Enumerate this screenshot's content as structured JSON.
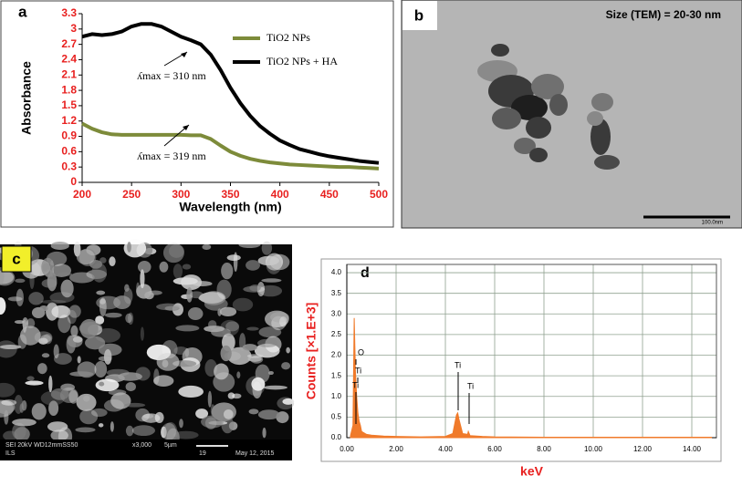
{
  "chart_data": [
    {
      "type": "line",
      "panel_label": "a",
      "xlabel": "Wavelength (nm)",
      "ylabel": "Absorbance",
      "x": [
        200,
        210,
        220,
        230,
        240,
        250,
        260,
        270,
        280,
        290,
        300,
        310,
        320,
        330,
        340,
        350,
        360,
        370,
        380,
        390,
        400,
        410,
        420,
        430,
        440,
        450,
        460,
        470,
        480,
        490,
        500
      ],
      "series": [
        {
          "name": "TiO2 NPs",
          "color": "#7d8b3a",
          "values": [
            1.15,
            1.05,
            0.98,
            0.94,
            0.93,
            0.93,
            0.93,
            0.93,
            0.93,
            0.93,
            0.93,
            0.92,
            0.92,
            0.85,
            0.72,
            0.6,
            0.52,
            0.46,
            0.42,
            0.39,
            0.37,
            0.35,
            0.34,
            0.33,
            0.32,
            0.31,
            0.3,
            0.3,
            0.29,
            0.28,
            0.27
          ]
        },
        {
          "name": "TiO2 NPs + HA",
          "color": "#000000",
          "values": [
            2.85,
            2.9,
            2.88,
            2.9,
            2.95,
            3.05,
            3.1,
            3.1,
            3.05,
            2.95,
            2.85,
            2.78,
            2.7,
            2.5,
            2.2,
            1.85,
            1.55,
            1.3,
            1.1,
            0.95,
            0.82,
            0.73,
            0.65,
            0.6,
            0.55,
            0.51,
            0.48,
            0.45,
            0.42,
            0.4,
            0.38
          ]
        }
      ],
      "xlim": [
        200,
        500
      ],
      "xticks": [
        200,
        250,
        300,
        350,
        400,
        450,
        500
      ],
      "ylim": [
        0,
        3.3
      ],
      "yticks": [
        0,
        0.3,
        0.6,
        0.9,
        1.2,
        1.5,
        1.8,
        2.1,
        2.4,
        2.7,
        3,
        3.3
      ],
      "tick_label_color": "#e8201f",
      "annotations": [
        "ʎmax = 310 nm",
        "ʎmax = 319 nm"
      ]
    },
    {
      "type": "area",
      "panel_label": "d",
      "xlabel": "keV",
      "ylabel": "Counts [×1.E+3]",
      "color": "#f07a2a",
      "x": [
        0.15,
        0.25,
        0.3,
        0.35,
        0.4,
        0.45,
        0.5,
        0.55,
        0.6,
        0.8,
        1.0,
        1.5,
        2.0,
        3.0,
        4.0,
        4.3,
        4.45,
        4.5,
        4.55,
        4.7,
        4.9,
        4.93,
        5.0,
        5.5,
        6,
        8,
        10,
        12,
        14,
        14.8
      ],
      "values": [
        0.05,
        0.3,
        2.9,
        1.6,
        1.0,
        0.6,
        0.4,
        0.3,
        0.15,
        0.08,
        0.06,
        0.04,
        0.03,
        0.02,
        0.03,
        0.1,
        0.55,
        0.6,
        0.45,
        0.1,
        0.08,
        0.15,
        0.05,
        0.03,
        0.02,
        0.01,
        0.01,
        0.01,
        0.01,
        0.01
      ],
      "xlim": [
        0,
        15
      ],
      "xticks": [
        {
          "value": 0,
          "label": "0.00"
        },
        {
          "value": 2,
          "label": "2.00"
        },
        {
          "value": 4,
          "label": "4.00"
        },
        {
          "value": 6,
          "label": "6.00"
        },
        {
          "value": 8,
          "label": "8.00"
        },
        {
          "value": 10,
          "label": "10.00"
        },
        {
          "value": 12,
          "label": "12.00"
        },
        {
          "value": 14,
          "label": "14.00"
        }
      ],
      "ylim": [
        0,
        4.2
      ],
      "yticks": [
        {
          "value": 0,
          "label": "0.0"
        },
        0.5,
        {
          "value": 1,
          "label": "1.0"
        },
        1.5,
        {
          "value": 2,
          "label": "2.0"
        },
        2.5,
        {
          "value": 3,
          "label": "3.0"
        },
        3.5,
        {
          "value": 4,
          "label": "4.0"
        }
      ],
      "grid": true,
      "label_color": "#e8201f",
      "annotations": [
        "O",
        "Ti",
        "Ti",
        "Ti",
        "Ti"
      ]
    }
  ],
  "images": {
    "b": {
      "label": "b",
      "caption": "Size (TEM) = 20-30 nm",
      "scale_bar": "100.0nm"
    },
    "c": {
      "label": "c",
      "info": [
        "SEI  20kV   WD12mmSS50",
        "x3,000",
        "5µm",
        "19",
        "May 12, 2015",
        "ILS"
      ]
    }
  }
}
